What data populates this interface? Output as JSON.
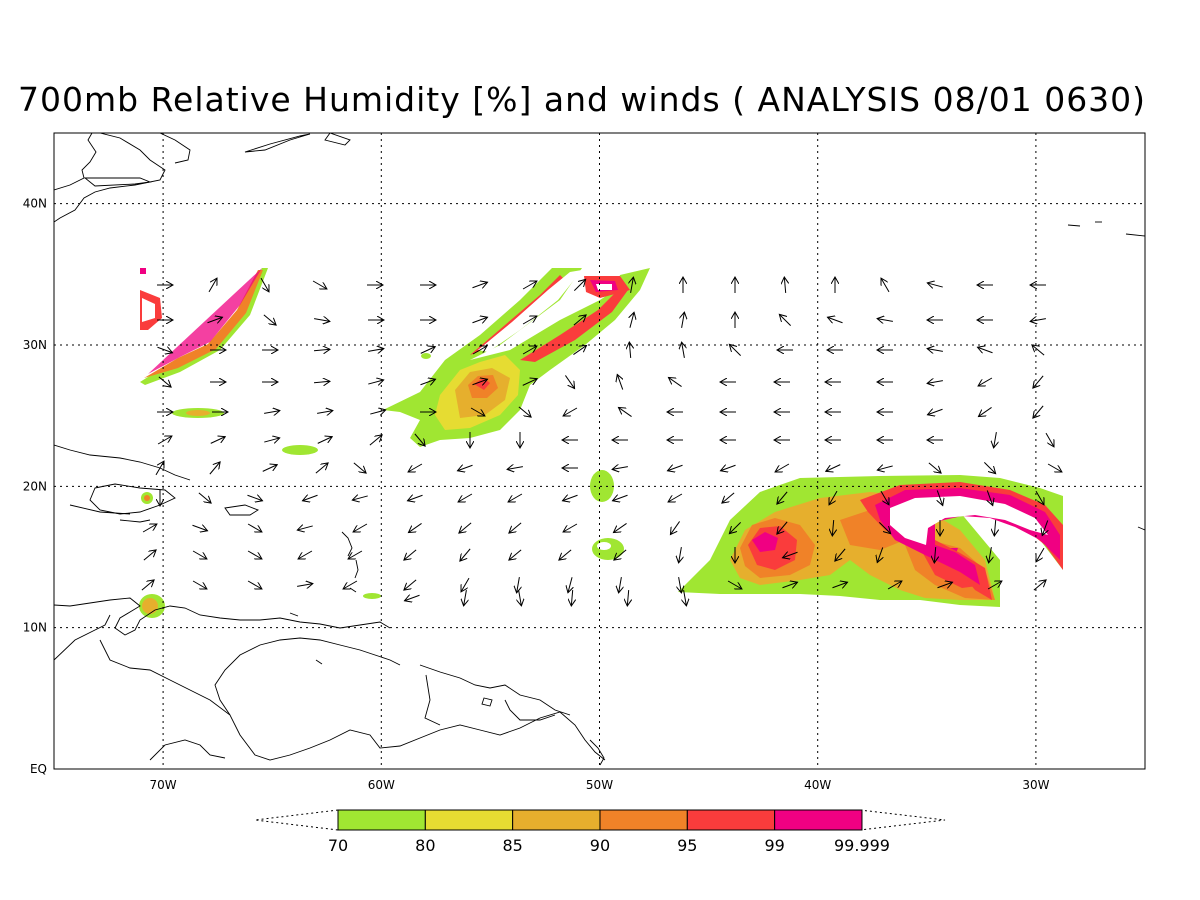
{
  "title": "700mb Relative Humidity [%] and winds ( ANALYSIS 08/01 0630)",
  "map": {
    "lon_range": [
      -75,
      -25
    ],
    "lat_range": [
      0,
      45
    ],
    "grid": "dotted",
    "lon_ticks": [
      {
        "value": -70,
        "label": "70W"
      },
      {
        "value": -60,
        "label": "60W"
      },
      {
        "value": -50,
        "label": "50W"
      },
      {
        "value": -40,
        "label": "40W"
      },
      {
        "value": -30,
        "label": "30W"
      }
    ],
    "lat_ticks": [
      {
        "value": 0,
        "label": "EQ"
      },
      {
        "value": 10,
        "label": "10N"
      },
      {
        "value": 20,
        "label": "20N"
      },
      {
        "value": 30,
        "label": "30N"
      },
      {
        "value": 40,
        "label": "40N"
      }
    ]
  },
  "colorbar": {
    "levels": [
      "70",
      "80",
      "85",
      "90",
      "95",
      "99",
      "99.999"
    ],
    "colors": [
      "#a0e632",
      "#e6dc32",
      "#e6af2d",
      "#f08228",
      "#fa3c3c",
      "#f00082"
    ]
  },
  "wind_field": "arrows",
  "humidity_field": "shaded contours"
}
